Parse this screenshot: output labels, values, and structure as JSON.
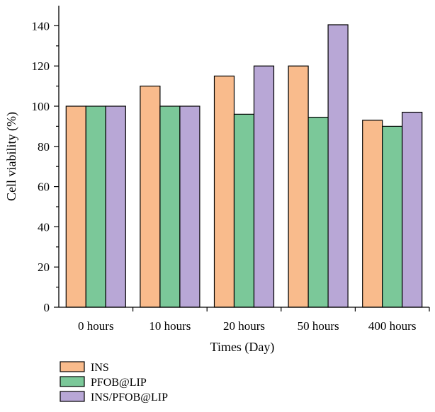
{
  "chart_data": {
    "type": "bar",
    "title": "",
    "xlabel": "Times (Day)",
    "ylabel": "Cell viability (%)",
    "ylim": [
      0,
      150
    ],
    "yticks": [
      0,
      20,
      40,
      60,
      80,
      100,
      120,
      140
    ],
    "categories": [
      "0 hours",
      "10 hours",
      "20 hours",
      "50 hours",
      "400 hours"
    ],
    "series": [
      {
        "name": "INS",
        "color": "#F9BB8C",
        "values": [
          100,
          110,
          115,
          120,
          93
        ]
      },
      {
        "name": "PFOB@LIP",
        "color": "#7BC899",
        "values": [
          100,
          100,
          96,
          94.5,
          90
        ]
      },
      {
        "name": "INS/PFOB@LIP",
        "color": "#B8A7D6",
        "values": [
          100,
          100,
          120,
          140.5,
          97
        ]
      }
    ],
    "legend_position": "bottom-left",
    "grid": false
  }
}
